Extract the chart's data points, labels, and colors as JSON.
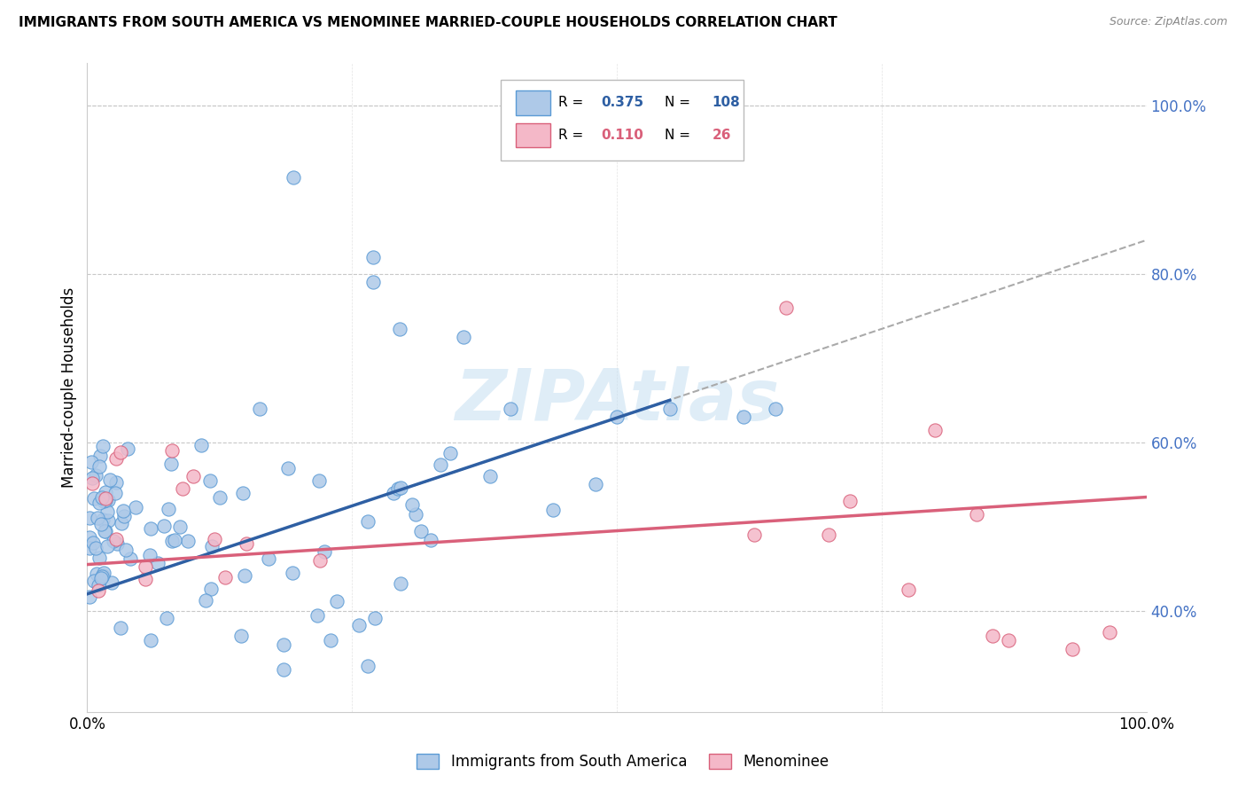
{
  "title": "IMMIGRANTS FROM SOUTH AMERICA VS MENOMINEE MARRIED-COUPLE HOUSEHOLDS CORRELATION CHART",
  "source": "Source: ZipAtlas.com",
  "ylabel": "Married-couple Households",
  "watermark": "ZIPAtlas",
  "series1": {
    "label": "Immigrants from South America",
    "color": "#aec9e8",
    "edge_color": "#5b9bd5",
    "R": 0.375,
    "N": 108,
    "line_color": "#2e5fa3"
  },
  "series2": {
    "label": "Menominee",
    "color": "#f4b8c8",
    "edge_color": "#d9607a",
    "R": 0.11,
    "N": 26,
    "line_color": "#d9607a"
  },
  "bg_color": "#ffffff",
  "grid_color": "#c8c8c8",
  "ytick_color": "#4472C4",
  "yticks": [
    0.4,
    0.6,
    0.8,
    1.0
  ],
  "ytick_labels": [
    "40.0%",
    "60.0%",
    "80.0%",
    "100.0%"
  ],
  "xtick_labels": [
    "0.0%",
    "100.0%"
  ],
  "x_range": [
    0.0,
    1.0
  ],
  "y_range": [
    0.28,
    1.05
  ],
  "blue_line_x0": 0.0,
  "blue_line_y0": 0.42,
  "blue_line_x1": 0.55,
  "blue_line_y1": 0.65,
  "pink_line_x0": 0.0,
  "pink_line_y0": 0.455,
  "pink_line_x1": 1.0,
  "pink_line_y1": 0.535,
  "dash_line_x0": 0.3,
  "dash_line_y0": 0.545,
  "dash_line_x1": 1.0,
  "dash_line_y1": 0.84
}
